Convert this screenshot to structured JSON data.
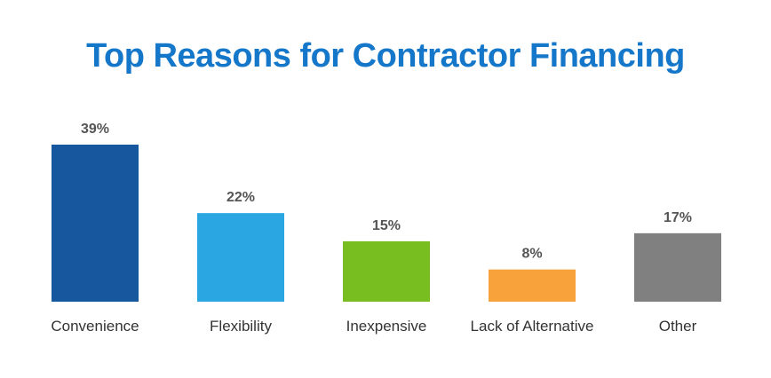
{
  "chart_data": {
    "type": "bar",
    "title": "Top Reasons for Contractor Financing",
    "title_color": "#1577C9",
    "categories": [
      "Convenience",
      "Flexibility",
      "Inexpensive",
      "Lack of Alternative",
      "Other"
    ],
    "values": [
      39,
      22,
      15,
      8,
      17
    ],
    "value_labels": [
      "39%",
      "22%",
      "15%",
      "8%",
      "17%"
    ],
    "bar_colors": [
      "#16579E",
      "#2AA6E2",
      "#78BE21",
      "#F7A23A",
      "#808080"
    ],
    "unit": "%",
    "ylim": [
      0,
      39
    ],
    "grid": false,
    "legend": "none",
    "xlabel": "",
    "ylabel": ""
  }
}
